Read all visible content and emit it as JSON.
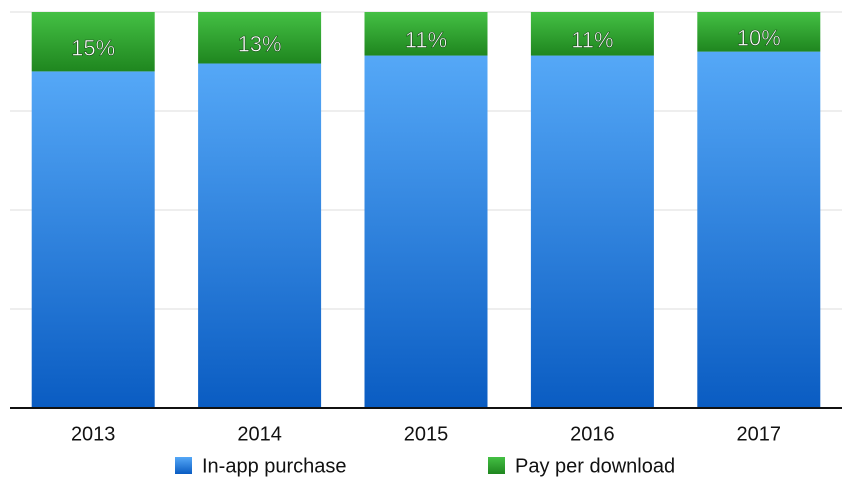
{
  "chart_data": {
    "type": "bar",
    "stacked": true,
    "categories": [
      "2013",
      "2014",
      "2015",
      "2016",
      "2017"
    ],
    "series": [
      {
        "name": "In-app purchase",
        "color": "#2b84e6",
        "values": [
          85,
          87,
          89,
          89,
          90
        ]
      },
      {
        "name": "Pay per download",
        "color": "#2f9f2f",
        "values": [
          15,
          13,
          11,
          11,
          10
        ],
        "value_labels": [
          "15%",
          "13%",
          "11%",
          "11%",
          "10%"
        ]
      }
    ],
    "ylim": [
      0,
      100
    ],
    "yticks": [
      0,
      25,
      50,
      75,
      100
    ],
    "grid": true
  }
}
